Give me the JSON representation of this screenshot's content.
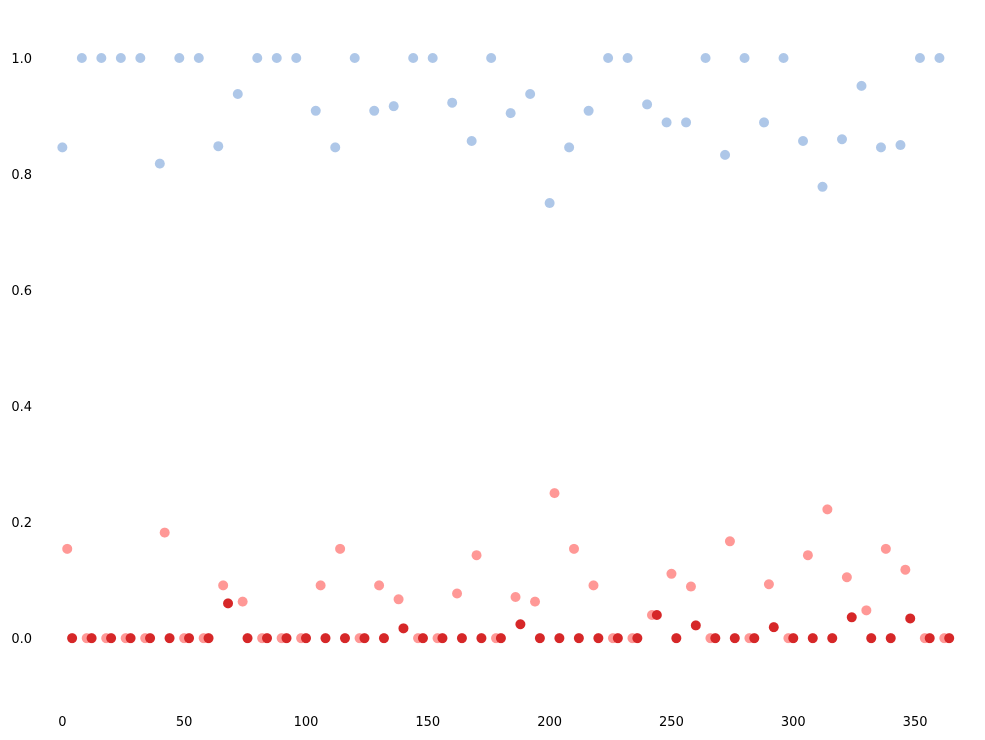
{
  "chart_data": {
    "type": "scatter",
    "xlim": [
      -10,
      375
    ],
    "ylim": [
      -0.11,
      1.1
    ],
    "xticks": [
      0,
      50,
      100,
      150,
      200,
      250,
      300,
      350
    ],
    "xtick_labels": [
      "0",
      "50",
      "100",
      "150",
      "200",
      "250",
      "300",
      "350"
    ],
    "yticks": [
      0.0,
      0.2,
      0.4,
      0.6,
      0.8,
      1.0
    ],
    "ytick_labels": [
      "0.0",
      "0.2",
      "0.4",
      "0.6",
      "0.8",
      "1.0"
    ],
    "grid": false,
    "series": [
      {
        "color": "#aec7e8",
        "x": [
          0,
          8,
          16,
          24,
          32,
          40,
          48,
          56,
          64,
          72,
          80,
          88,
          96,
          104,
          112,
          120,
          128,
          136,
          144,
          152,
          160,
          168,
          176,
          184,
          192,
          200,
          208,
          216,
          224,
          232,
          240,
          248,
          256,
          264,
          272,
          280,
          288,
          296,
          304,
          312,
          320,
          328,
          336,
          344,
          352,
          360
        ],
        "y": [
          0.846,
          1.0,
          1.0,
          1.0,
          1.0,
          0.818,
          1.0,
          1.0,
          0.848,
          0.938,
          1.0,
          1.0,
          1.0,
          0.909,
          0.846,
          1.0,
          0.909,
          0.917,
          1.0,
          1.0,
          0.923,
          0.857,
          1.0,
          0.905,
          0.938,
          0.75,
          0.846,
          0.909,
          1.0,
          1.0,
          0.92,
          0.889,
          0.889,
          1.0,
          0.833,
          1.0,
          0.889,
          1.0,
          0.857,
          0.778,
          0.86,
          0.952,
          0.846,
          0.85,
          1.0,
          1.0
        ]
      },
      {
        "color": "#ff9896",
        "x": [
          2,
          10,
          18,
          26,
          34,
          42,
          50,
          58,
          66,
          74,
          82,
          90,
          98,
          106,
          114,
          122,
          130,
          138,
          146,
          154,
          162,
          170,
          178,
          186,
          194,
          202,
          210,
          218,
          226,
          234,
          242,
          250,
          258,
          266,
          274,
          282,
          290,
          298,
          306,
          314,
          322,
          330,
          338,
          346,
          354,
          362
        ],
        "y": [
          0.154,
          0,
          0,
          0,
          0,
          0.182,
          0,
          0,
          0.091,
          0.063,
          0,
          0,
          0,
          0.091,
          0.154,
          0,
          0.091,
          0.067,
          0,
          0,
          0.077,
          0.143,
          0,
          0.071,
          0.063,
          0.25,
          0.154,
          0.091,
          0,
          0,
          0.04,
          0.111,
          0.089,
          0,
          0.167,
          0,
          0.093,
          0,
          0.143,
          0.222,
          0.105,
          0.048,
          0.154,
          0.118,
          0,
          0
        ]
      },
      {
        "color": "#d62728",
        "x": [
          4,
          12,
          20,
          28,
          36,
          44,
          52,
          60,
          68,
          76,
          84,
          92,
          100,
          108,
          116,
          124,
          132,
          140,
          148,
          156,
          164,
          172,
          180,
          188,
          196,
          204,
          212,
          220,
          228,
          236,
          244,
          252,
          260,
          268,
          276,
          284,
          292,
          300,
          308,
          316,
          324,
          332,
          340,
          348,
          356,
          364
        ],
        "y": [
          0,
          0,
          0,
          0,
          0,
          0,
          0,
          0,
          0.06,
          0,
          0,
          0,
          0,
          0,
          0,
          0,
          0,
          0.017,
          0,
          0,
          0,
          0,
          0,
          0.024,
          0,
          0,
          0,
          0,
          0,
          0,
          0.04,
          0,
          0.022,
          0,
          0,
          0,
          0.019,
          0,
          0,
          0,
          0.036,
          0,
          0,
          0.034,
          0,
          0
        ]
      }
    ]
  }
}
